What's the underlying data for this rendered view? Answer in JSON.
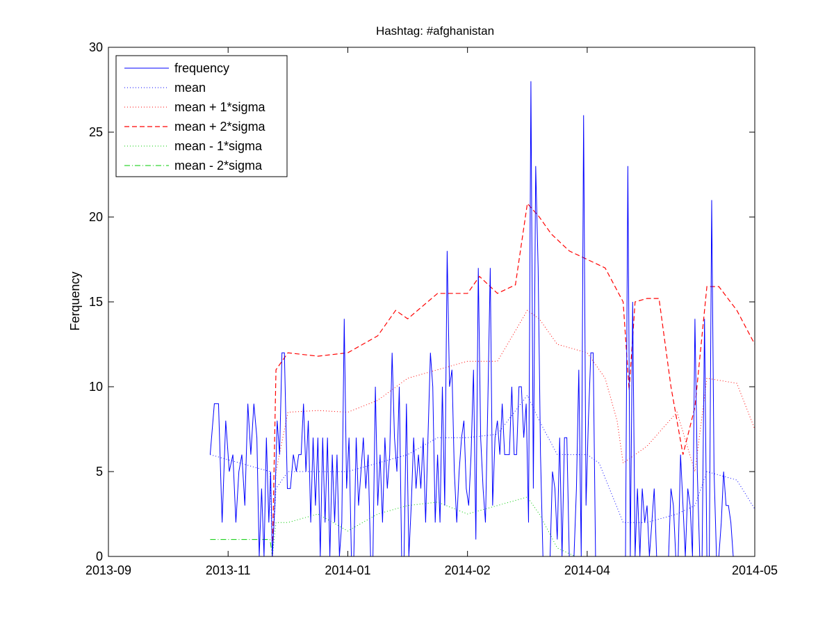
{
  "chart_data": {
    "type": "line",
    "title": "Hashtag: #afghanistan",
    "ylabel": "Ferquency",
    "xlabel": "",
    "ylim": [
      0,
      30
    ],
    "yticks": [
      0,
      5,
      10,
      15,
      20,
      25,
      30
    ],
    "xlim": [
      "2013-09",
      "2014-05"
    ],
    "xticks": [
      "2013-09",
      "2013-11",
      "2014-01",
      "2014-02",
      "2014-04",
      "2014-05"
    ],
    "grid": false,
    "legend_position": "top-left",
    "colors": {
      "frequency": "#0000ff",
      "mean": "#0000ff",
      "sigma_plus": "#ff0000",
      "sigma_minus": "#00cc00"
    },
    "series": [
      {
        "name": "frequency",
        "style": "solid",
        "points": [
          [
            0.17,
            6
          ],
          [
            0.177,
            9
          ],
          [
            0.184,
            9
          ],
          [
            0.19,
            2
          ],
          [
            0.196,
            8
          ],
          [
            0.202,
            5
          ],
          [
            0.208,
            6
          ],
          [
            0.213,
            2
          ],
          [
            0.218,
            5
          ],
          [
            0.223,
            6
          ],
          [
            0.228,
            3
          ],
          [
            0.233,
            9
          ],
          [
            0.238,
            6
          ],
          [
            0.243,
            9
          ],
          [
            0.248,
            7
          ],
          [
            0.252,
            0
          ],
          [
            0.256,
            4
          ],
          [
            0.26,
            0
          ],
          [
            0.264,
            7
          ],
          [
            0.268,
            2
          ],
          [
            0.271,
            5
          ],
          [
            0.274,
            0
          ],
          [
            0.278,
            3
          ],
          [
            0.282,
            8
          ],
          [
            0.286,
            6
          ],
          [
            0.29,
            12
          ],
          [
            0.294,
            12
          ],
          [
            0.299,
            4
          ],
          [
            0.304,
            4
          ],
          [
            0.309,
            6
          ],
          [
            0.314,
            5
          ],
          [
            0.318,
            6
          ],
          [
            0.322,
            6
          ],
          [
            0.326,
            9
          ],
          [
            0.33,
            5
          ],
          [
            0.334,
            8
          ],
          [
            0.338,
            2
          ],
          [
            0.342,
            7
          ],
          [
            0.346,
            3
          ],
          [
            0.35,
            7
          ],
          [
            0.354,
            0
          ],
          [
            0.358,
            7
          ],
          [
            0.362,
            2
          ],
          [
            0.366,
            7
          ],
          [
            0.37,
            0
          ],
          [
            0.374,
            6
          ],
          [
            0.378,
            2
          ],
          [
            0.382,
            6
          ],
          [
            0.386,
            0
          ],
          [
            0.39,
            2
          ],
          [
            0.394,
            14
          ],
          [
            0.398,
            4
          ],
          [
            0.402,
            7
          ],
          [
            0.406,
            0
          ],
          [
            0.41,
            0
          ],
          [
            0.414,
            7
          ],
          [
            0.418,
            3
          ],
          [
            0.422,
            5
          ],
          [
            0.426,
            7
          ],
          [
            0.43,
            4
          ],
          [
            0.434,
            6
          ],
          [
            0.438,
            0
          ],
          [
            0.442,
            0
          ],
          [
            0.446,
            10
          ],
          [
            0.45,
            3
          ],
          [
            0.454,
            6
          ],
          [
            0.458,
            2
          ],
          [
            0.462,
            7
          ],
          [
            0.466,
            4
          ],
          [
            0.47,
            6
          ],
          [
            0.474,
            12
          ],
          [
            0.478,
            7
          ],
          [
            0.482,
            5
          ],
          [
            0.486,
            10
          ],
          [
            0.49,
            0
          ],
          [
            0.494,
            0
          ],
          [
            0.498,
            9
          ],
          [
            0.502,
            0
          ],
          [
            0.506,
            3
          ],
          [
            0.51,
            7
          ],
          [
            0.514,
            4
          ],
          [
            0.518,
            6
          ],
          [
            0.522,
            4
          ],
          [
            0.526,
            7
          ],
          [
            0.53,
            2
          ],
          [
            0.534,
            7
          ],
          [
            0.538,
            12
          ],
          [
            0.542,
            10
          ],
          [
            0.546,
            2
          ],
          [
            0.55,
            6
          ],
          [
            0.554,
            2
          ],
          [
            0.558,
            10
          ],
          [
            0.562,
            3
          ],
          [
            0.566,
            18
          ],
          [
            0.57,
            10
          ],
          [
            0.574,
            11
          ],
          [
            0.578,
            5
          ],
          [
            0.582,
            2
          ],
          [
            0.586,
            5
          ],
          [
            0.59,
            7
          ],
          [
            0.594,
            8
          ],
          [
            0.598,
            4
          ],
          [
            0.602,
            3
          ],
          [
            0.606,
            6
          ],
          [
            0.61,
            11
          ],
          [
            0.614,
            1
          ],
          [
            0.618,
            17
          ],
          [
            0.622,
            7
          ],
          [
            0.626,
            4
          ],
          [
            0.63,
            2
          ],
          [
            0.634,
            9
          ],
          [
            0.638,
            17
          ],
          [
            0.642,
            3
          ],
          [
            0.646,
            7
          ],
          [
            0.65,
            8
          ],
          [
            0.654,
            6
          ],
          [
            0.658,
            9
          ],
          [
            0.662,
            6
          ],
          [
            0.666,
            6
          ],
          [
            0.67,
            6
          ],
          [
            0.674,
            10
          ],
          [
            0.678,
            6
          ],
          [
            0.682,
            6
          ],
          [
            0.686,
            10
          ],
          [
            0.69,
            10
          ],
          [
            0.694,
            7
          ],
          [
            0.698,
            9
          ],
          [
            0.702,
            2
          ],
          [
            0.706,
            28
          ],
          [
            0.71,
            4
          ],
          [
            0.714,
            23
          ],
          [
            0.718,
            17
          ],
          [
            0.722,
            6
          ],
          [
            0.726,
            0
          ],
          [
            0.73,
            0
          ],
          [
            0.734,
            0
          ],
          [
            0.738,
            0
          ],
          [
            0.742,
            5
          ],
          [
            0.746,
            4
          ],
          [
            0.75,
            1
          ],
          [
            0.754,
            7
          ],
          [
            0.758,
            0
          ],
          [
            0.762,
            7
          ],
          [
            0.766,
            7
          ],
          [
            0.77,
            0
          ],
          [
            0.774,
            0
          ],
          [
            0.778,
            0
          ],
          [
            0.782,
            4
          ],
          [
            0.786,
            11
          ],
          [
            0.79,
            0
          ],
          [
            0.794,
            26
          ],
          [
            0.798,
            3
          ],
          [
            0.802,
            8
          ],
          [
            0.806,
            12
          ],
          [
            0.81,
            12
          ],
          [
            0.814,
            0
          ],
          [
            0.818,
            0
          ],
          [
            0.822,
            0
          ],
          [
            0.826,
            0
          ],
          [
            0.83,
            0
          ],
          [
            0.86,
            0
          ],
          [
            0.864,
            0
          ],
          [
            0.868,
            23
          ],
          [
            0.872,
            0
          ],
          [
            0.876,
            15
          ],
          [
            0.88,
            0
          ],
          [
            0.884,
            4
          ],
          [
            0.888,
            0
          ],
          [
            0.892,
            4
          ],
          [
            0.896,
            2
          ],
          [
            0.9,
            3
          ],
          [
            0.904,
            0
          ],
          [
            0.908,
            2
          ],
          [
            0.912,
            4
          ],
          [
            0.916,
            0
          ],
          [
            0.92,
            0
          ],
          [
            0.924,
            0
          ],
          [
            0.928,
            0
          ],
          [
            0.932,
            0
          ],
          [
            0.936,
            0
          ],
          [
            0.94,
            4
          ],
          [
            0.944,
            3
          ],
          [
            0.948,
            0
          ],
          [
            0.952,
            0
          ],
          [
            0.956,
            6
          ],
          [
            0.96,
            3
          ],
          [
            0.964,
            0
          ],
          [
            0.968,
            4
          ],
          [
            0.972,
            3
          ],
          [
            0.976,
            0
          ],
          [
            0.98,
            14
          ],
          [
            0.984,
            5
          ],
          [
            0.988,
            0
          ],
          [
            0.992,
            0
          ],
          [
            0.996,
            14
          ],
          [
            1.0,
            0
          ],
          [
            1.004,
            0
          ],
          [
            1.008,
            21
          ],
          [
            1.012,
            5
          ],
          [
            1.016,
            0
          ],
          [
            1.02,
            0
          ],
          [
            1.024,
            2
          ],
          [
            1.028,
            5
          ],
          [
            1.032,
            3
          ],
          [
            1.036,
            3
          ],
          [
            1.04,
            2
          ],
          [
            1.044,
            0
          ]
        ]
      },
      {
        "name": "mean",
        "style": "dotted",
        "points": [
          [
            0.17,
            6
          ],
          [
            0.22,
            5.5
          ],
          [
            0.27,
            5
          ],
          [
            0.274,
            0
          ],
          [
            0.28,
            4
          ],
          [
            0.3,
            5
          ],
          [
            0.35,
            5
          ],
          [
            0.4,
            5
          ],
          [
            0.45,
            5.5
          ],
          [
            0.5,
            6
          ],
          [
            0.55,
            7
          ],
          [
            0.6,
            7
          ],
          [
            0.65,
            7.2
          ],
          [
            0.7,
            9.5
          ],
          [
            0.72,
            8
          ],
          [
            0.75,
            6
          ],
          [
            0.8,
            6
          ],
          [
            0.82,
            5.5
          ],
          [
            0.86,
            2
          ],
          [
            0.9,
            2
          ],
          [
            0.95,
            2.5
          ],
          [
            0.98,
            3
          ],
          [
            1.0,
            5
          ],
          [
            1.05,
            4.5
          ],
          [
            1.08,
            2.8
          ]
        ]
      },
      {
        "name": "mean + 1*sigma",
        "style": "dotted",
        "points": [
          [
            0.274,
            0
          ],
          [
            0.28,
            5
          ],
          [
            0.3,
            8.5
          ],
          [
            0.35,
            8.6
          ],
          [
            0.4,
            8.5
          ],
          [
            0.45,
            9.2
          ],
          [
            0.5,
            10.5
          ],
          [
            0.55,
            11
          ],
          [
            0.6,
            11.5
          ],
          [
            0.65,
            11.5
          ],
          [
            0.7,
            14.5
          ],
          [
            0.72,
            14
          ],
          [
            0.75,
            12.5
          ],
          [
            0.8,
            12
          ],
          [
            0.83,
            10.5
          ],
          [
            0.85,
            8
          ],
          [
            0.86,
            5.5
          ],
          [
            0.9,
            6.5
          ],
          [
            0.95,
            8.5
          ],
          [
            0.98,
            5
          ],
          [
            1.0,
            10.5
          ],
          [
            1.05,
            10.2
          ],
          [
            1.08,
            7.5
          ]
        ]
      },
      {
        "name": "mean + 2*sigma",
        "style": "dashed",
        "points": [
          [
            0.274,
            0
          ],
          [
            0.28,
            11
          ],
          [
            0.3,
            12
          ],
          [
            0.35,
            11.8
          ],
          [
            0.4,
            12
          ],
          [
            0.45,
            13
          ],
          [
            0.48,
            14.5
          ],
          [
            0.5,
            14
          ],
          [
            0.55,
            15.5
          ],
          [
            0.6,
            15.5
          ],
          [
            0.62,
            16.5
          ],
          [
            0.65,
            15.5
          ],
          [
            0.68,
            16
          ],
          [
            0.7,
            20.8
          ],
          [
            0.72,
            20
          ],
          [
            0.74,
            19
          ],
          [
            0.77,
            18
          ],
          [
            0.8,
            17.5
          ],
          [
            0.83,
            17
          ],
          [
            0.86,
            15
          ],
          [
            0.87,
            9.8
          ],
          [
            0.88,
            15
          ],
          [
            0.9,
            15.2
          ],
          [
            0.92,
            15.2
          ],
          [
            0.94,
            10
          ],
          [
            0.96,
            6
          ],
          [
            0.98,
            8.8
          ],
          [
            1.0,
            15.9
          ],
          [
            1.02,
            15.9
          ],
          [
            1.05,
            14.5
          ],
          [
            1.08,
            12.5
          ]
        ]
      },
      {
        "name": "mean - 1*sigma",
        "style": "dotted",
        "points": [
          [
            0.274,
            0
          ],
          [
            0.28,
            2
          ],
          [
            0.3,
            2
          ],
          [
            0.35,
            2.5
          ],
          [
            0.4,
            1.5
          ],
          [
            0.45,
            2.5
          ],
          [
            0.5,
            3
          ],
          [
            0.55,
            3.2
          ],
          [
            0.6,
            2.5
          ],
          [
            0.65,
            3
          ],
          [
            0.7,
            3.5
          ],
          [
            0.72,
            2.5
          ],
          [
            0.75,
            0.5
          ],
          [
            0.78,
            0
          ]
        ]
      },
      {
        "name": "mean - 2*sigma",
        "style": "dashdot",
        "points": [
          [
            0.17,
            1
          ],
          [
            0.22,
            1
          ],
          [
            0.27,
            1
          ],
          [
            0.274,
            0
          ]
        ]
      }
    ]
  }
}
